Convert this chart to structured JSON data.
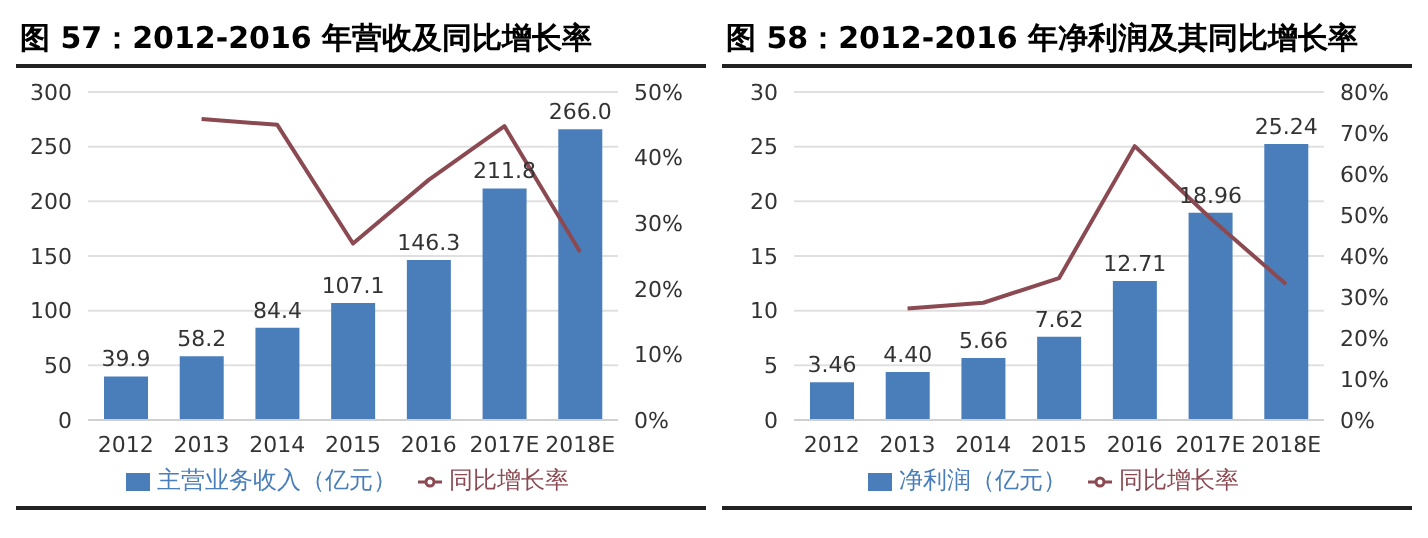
{
  "chart_data": [
    {
      "type": "bar",
      "title": "图 57：2012-2016 年营收及同比增长率",
      "categories": [
        "2012",
        "2013",
        "2014",
        "2015",
        "2016",
        "2017E",
        "2018E"
      ],
      "series": [
        {
          "name": "主营业务收入（亿元）",
          "color": "#4a7ebb",
          "values": [
            39.9,
            58.2,
            84.4,
            107.1,
            146.3,
            211.8,
            266.0
          ],
          "value_labels": [
            "39.9",
            "58.2",
            "84.4",
            "107.1",
            "146.3",
            "211.8",
            "266.0"
          ]
        },
        {
          "name": "同比增长率",
          "type": "line",
          "axis": "y2",
          "color": "#8b4a52",
          "values": [
            null,
            45.9,
            45.0,
            26.9,
            36.6,
            44.8,
            25.6
          ]
        }
      ],
      "ylim": [
        0,
        300
      ],
      "yticks": [
        0,
        50,
        100,
        150,
        200,
        250,
        300
      ],
      "y2lim": [
        0,
        50
      ],
      "y2ticks": [
        {
          "value": 0,
          "label": "0%"
        },
        {
          "value": 10,
          "label": "10%"
        },
        {
          "value": 20,
          "label": "20%"
        },
        {
          "value": 30,
          "label": "30%"
        },
        {
          "value": 40,
          "label": "40%"
        },
        {
          "value": 50,
          "label": "50%"
        }
      ],
      "grid": "y",
      "legend": "bottom",
      "marker": "none"
    },
    {
      "type": "bar",
      "title": "图 58：2012-2016 年净利润及其同比增长率",
      "categories": [
        "2012",
        "2013",
        "2014",
        "2015",
        "2016",
        "2017E",
        "2018E"
      ],
      "series": [
        {
          "name": "净利润（亿元）",
          "color": "#4a7ebb",
          "values": [
            3.46,
            4.4,
            5.66,
            7.62,
            12.71,
            18.96,
            25.24
          ],
          "value_labels": [
            "3.46",
            "4.40",
            "5.66",
            "7.62",
            "12.71",
            "18.96",
            "25.24"
          ]
        },
        {
          "name": "同比增长率",
          "type": "line",
          "axis": "y2",
          "color": "#8b4a52",
          "values": [
            null,
            27.2,
            28.6,
            34.6,
            66.8,
            49.2,
            33.1
          ]
        }
      ],
      "ylim": [
        0,
        30
      ],
      "yticks": [
        0,
        5,
        10,
        15,
        20,
        25,
        30
      ],
      "y2lim": [
        0,
        80
      ],
      "y2ticks": [
        {
          "value": 0,
          "label": "0%"
        },
        {
          "value": 10,
          "label": "10%"
        },
        {
          "value": 20,
          "label": "20%"
        },
        {
          "value": 30,
          "label": "30%"
        },
        {
          "value": 40,
          "label": "40%"
        },
        {
          "value": 50,
          "label": "50%"
        },
        {
          "value": 60,
          "label": "60%"
        },
        {
          "value": 70,
          "label": "70%"
        },
        {
          "value": 80,
          "label": "80%"
        }
      ],
      "grid": "y",
      "legend": "bottom",
      "marker": "none"
    }
  ]
}
